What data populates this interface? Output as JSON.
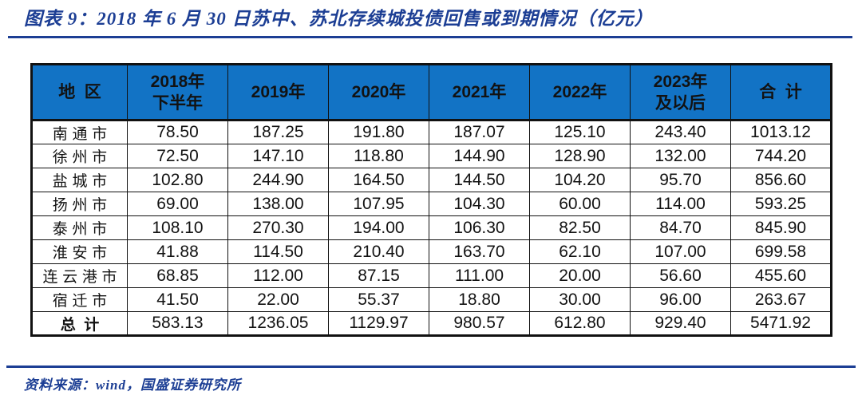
{
  "figure": {
    "title": "图表 9：2018 年 6 月 30 日苏中、苏北存续城投债回售或到期情况（亿元）",
    "source": "资料来源：wind，国盛证券研究所"
  },
  "colors": {
    "navy": "#1c3e94",
    "header_blue": "#1273c5",
    "header_text": "#ffffff",
    "body_text": "#121212",
    "border": "#111111"
  },
  "table": {
    "columns": [
      {
        "line1": "地区",
        "line2": ""
      },
      {
        "line1": "2018年",
        "line2": "下半年"
      },
      {
        "line1": "2019年",
        "line2": ""
      },
      {
        "line1": "2020年",
        "line2": ""
      },
      {
        "line1": "2021年",
        "line2": ""
      },
      {
        "line1": "2022年",
        "line2": ""
      },
      {
        "line1": "2023年",
        "line2": "及以后"
      },
      {
        "line1": "合计",
        "line2": ""
      }
    ],
    "rows": [
      {
        "region": "南通市",
        "values": [
          "78.50",
          "187.25",
          "191.80",
          "187.07",
          "125.10",
          "243.40",
          "1013.12"
        ],
        "is_total": false
      },
      {
        "region": "徐州市",
        "values": [
          "72.50",
          "147.10",
          "118.80",
          "144.90",
          "128.90",
          "132.00",
          "744.20"
        ],
        "is_total": false
      },
      {
        "region": "盐城市",
        "values": [
          "102.80",
          "244.90",
          "164.50",
          "144.50",
          "104.20",
          "95.70",
          "856.60"
        ],
        "is_total": false
      },
      {
        "region": "扬州市",
        "values": [
          "69.00",
          "138.00",
          "107.95",
          "104.30",
          "60.00",
          "114.00",
          "593.25"
        ],
        "is_total": false
      },
      {
        "region": "泰州市",
        "values": [
          "108.10",
          "270.30",
          "194.00",
          "106.30",
          "82.50",
          "84.70",
          "845.90"
        ],
        "is_total": false
      },
      {
        "region": "淮安市",
        "values": [
          "41.88",
          "114.50",
          "210.40",
          "163.70",
          "62.10",
          "107.00",
          "699.58"
        ],
        "is_total": false
      },
      {
        "region": "连云港市",
        "values": [
          "68.85",
          "112.00",
          "87.15",
          "111.00",
          "20.00",
          "56.60",
          "455.60"
        ],
        "is_total": false
      },
      {
        "region": "宿迁市",
        "values": [
          "41.50",
          "22.00",
          "55.37",
          "18.80",
          "30.00",
          "96.00",
          "263.67"
        ],
        "is_total": false
      },
      {
        "region": "总计",
        "values": [
          "583.13",
          "1236.05",
          "1129.97",
          "980.57",
          "612.80",
          "929.40",
          "5471.92"
        ],
        "is_total": true
      }
    ]
  }
}
